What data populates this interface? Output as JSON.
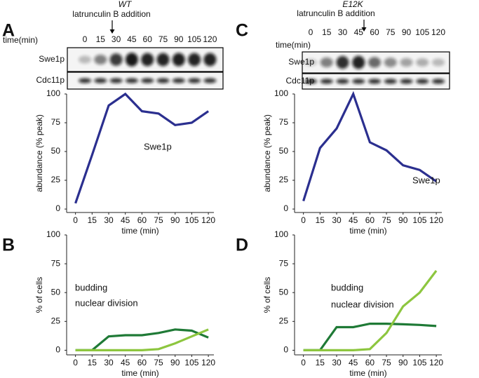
{
  "blots": [
    {
      "title": "WT",
      "annotation": "latrunculin B addition",
      "time_label": "time(min)",
      "times": [
        0,
        15,
        30,
        45,
        60,
        75,
        90,
        105,
        120
      ],
      "rows": [
        "Swe1p",
        "Cdc11p"
      ]
    },
    {
      "title": "E12K",
      "annotation": "latrunculin B addition",
      "time_label": "time(min)",
      "times": [
        0,
        15,
        30,
        45,
        60,
        75,
        90,
        105,
        120
      ],
      "rows": [
        "Swe1p",
        "Cdc11p"
      ]
    }
  ],
  "chart_data": [
    {
      "type": "line",
      "panel_label": "A",
      "x": [
        0,
        15,
        30,
        45,
        60,
        75,
        90,
        105,
        120
      ],
      "xlim": [
        -8,
        125
      ],
      "xticks": [
        0,
        15,
        30,
        45,
        60,
        75,
        90,
        105,
        120
      ],
      "ylim": [
        -3,
        100
      ],
      "yticks": [
        0,
        25,
        50,
        75,
        100
      ],
      "y_label": "abundance (% peak)",
      "x_label": "time (min)",
      "series": [
        {
          "name": "Swe1p",
          "color": "#2b2f8f",
          "values": [
            5,
            47,
            90,
            100,
            85,
            83,
            73,
            75,
            85
          ]
        }
      ]
    },
    {
      "type": "line",
      "panel_label": "B",
      "x": [
        0,
        15,
        30,
        45,
        60,
        75,
        90,
        105,
        120
      ],
      "xlim": [
        -8,
        125
      ],
      "xticks": [
        0,
        15,
        30,
        45,
        60,
        75,
        90,
        105,
        120
      ],
      "ylim": [
        -4,
        100
      ],
      "yticks": [
        0,
        25,
        50,
        75,
        100
      ],
      "y_label": "% of cells",
      "x_label": "time (min)",
      "series": [
        {
          "name": "budding",
          "color": "#1f7a36",
          "values": [
            0,
            0,
            12,
            13,
            13,
            15,
            18,
            17,
            11
          ]
        },
        {
          "name": "nuclear division",
          "color": "#8dc63f",
          "values": [
            0,
            0,
            0,
            0,
            0,
            1,
            6,
            12,
            18
          ]
        }
      ]
    },
    {
      "type": "line",
      "panel_label": "C",
      "x": [
        0,
        15,
        30,
        45,
        60,
        75,
        90,
        105,
        120
      ],
      "xlim": [
        -8,
        125
      ],
      "xticks": [
        0,
        15,
        30,
        45,
        60,
        75,
        90,
        105,
        120
      ],
      "ylim": [
        -3,
        100
      ],
      "yticks": [
        0,
        25,
        50,
        75,
        100
      ],
      "y_label": "abundance (% peak)",
      "x_label": "time (min)",
      "series": [
        {
          "name": "Swe1p",
          "color": "#2b2f8f",
          "values": [
            7,
            53,
            70,
            100,
            58,
            51,
            38,
            34,
            24
          ]
        }
      ]
    },
    {
      "type": "line",
      "panel_label": "D",
      "x": [
        0,
        15,
        30,
        45,
        60,
        75,
        90,
        105,
        120
      ],
      "xlim": [
        -8,
        125
      ],
      "xticks": [
        0,
        15,
        30,
        45,
        60,
        75,
        90,
        105,
        120
      ],
      "ylim": [
        -4,
        100
      ],
      "yticks": [
        0,
        25,
        50,
        75,
        100
      ],
      "y_label": "% of cells",
      "x_label": "time (min)",
      "series": [
        {
          "name": "budding",
          "color": "#1f7a36",
          "values": [
            0,
            0,
            20,
            20,
            23,
            23,
            22.5,
            22,
            21
          ]
        },
        {
          "name": "nuclear division",
          "color": "#8dc63f",
          "values": [
            0,
            0,
            0,
            0,
            1,
            15,
            38,
            50,
            69
          ]
        }
      ]
    }
  ]
}
